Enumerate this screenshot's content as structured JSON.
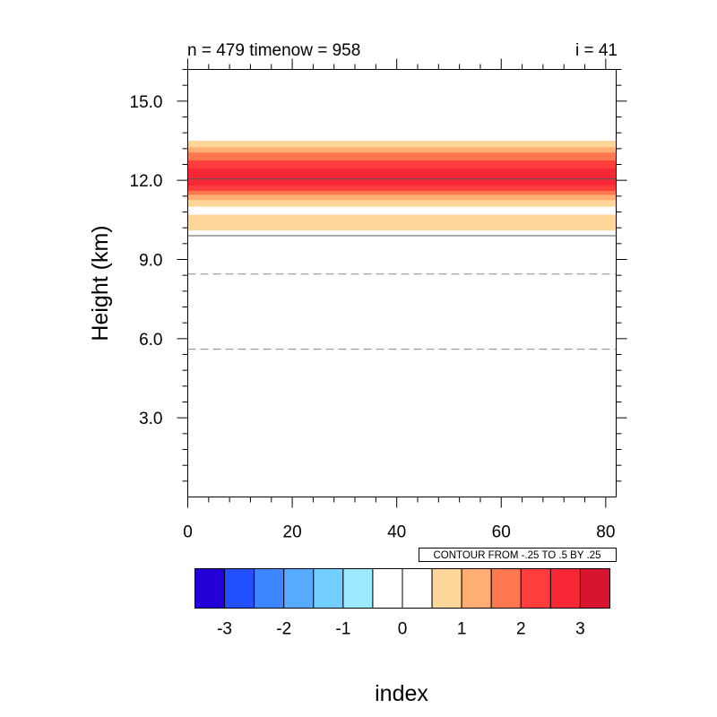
{
  "chart_data": {
    "type": "heatmap",
    "title_left": "n = 479 timenow = 958",
    "title_right": "i = 41",
    "xlabel": "index",
    "ylabel": "Height (km)",
    "xlim": [
      0,
      82
    ],
    "ylim": [
      0,
      16.2
    ],
    "xticks": [
      0,
      20,
      40,
      60,
      80
    ],
    "xtick_labels": [
      "0",
      "20",
      "40",
      "60",
      "80"
    ],
    "yticks": [
      3,
      6,
      9,
      12,
      15
    ],
    "ytick_labels": [
      "3.0",
      "6.0",
      "9.0",
      "12.0",
      "15.0"
    ],
    "grid": false,
    "info_label": "CONTOUR FROM -.25 TO .5 BY .25",
    "colorbar": {
      "colors": [
        "#2400d8",
        "#2350ff",
        "#3c87ff",
        "#56aaff",
        "#73cfff",
        "#9beaff",
        "#ffffff",
        "#ffffff",
        "#ffd699",
        "#ffad72",
        "#ff774f",
        "#ff3d3d",
        "#f72735",
        "#d8152f"
      ],
      "tick_labels": [
        "-3",
        "-2",
        "-1",
        "0",
        "1",
        "2",
        "3"
      ]
    },
    "bands": [
      {
        "y0": 10.1,
        "y1": 10.7,
        "level": 1
      },
      {
        "y0": 11.0,
        "y1": 13.5,
        "level": 1
      },
      {
        "y0": 11.25,
        "y1": 13.25,
        "level": 2
      },
      {
        "y0": 11.45,
        "y1": 13.05,
        "level": 3
      },
      {
        "y0": 11.6,
        "y1": 12.75,
        "level": 4
      },
      {
        "y0": 11.8,
        "y1": 12.45,
        "level": 5
      }
    ],
    "contour_lines": [
      {
        "y": 12.05,
        "style": "solid"
      },
      {
        "y": 9.9,
        "style": "solid"
      },
      {
        "y": 8.45,
        "style": "dashed"
      },
      {
        "y": 5.6,
        "style": "dashed"
      }
    ]
  }
}
